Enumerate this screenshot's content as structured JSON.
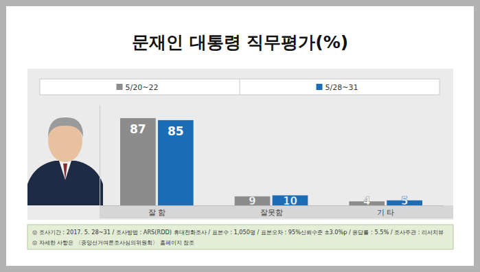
{
  "chart_data": {
    "type": "bar",
    "title": "문재인 대통령 직무평가(%)",
    "categories": [
      "잘 함",
      "잘못함",
      "기 타"
    ],
    "series": [
      {
        "name": "5/20~22",
        "color": "#8c8c8c",
        "values": [
          87,
          9,
          4
        ]
      },
      {
        "name": "5/28~31",
        "color": "#1b6db5",
        "values": [
          85,
          10,
          5
        ]
      }
    ],
    "ylim": [
      0,
      100
    ],
    "tick_labels": "x",
    "data_labels": true,
    "legend": "top",
    "grid": false,
    "notes": [
      "◎ 조사기간 : 2017. 5. 28~31 / 조사방법 : ARS(RDD) 휴대전화조사 / 표본수 : 1,050명 / 표본오차 : 95%신뢰수준 ±3.0%p / 응답률 : 5.5% / 조사주관 : 리서치뷰",
      "◎ 자세한 사항은 〈중앙선거여론조사심의위원회〉 홈페이지 참조"
    ]
  }
}
